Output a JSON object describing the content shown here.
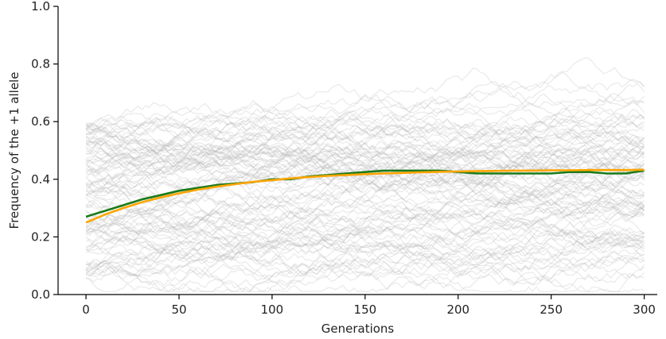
{
  "chart_data": {
    "type": "line",
    "title": "",
    "xlabel": "Generations",
    "ylabel": "Frequency of the +1 allele",
    "xlim": [
      -15,
      307
    ],
    "ylim": [
      0.0,
      1.0
    ],
    "xticks": [
      0,
      50,
      100,
      150,
      200,
      250,
      300
    ],
    "xtick_labels": [
      "0",
      "50",
      "100",
      "150",
      "200",
      "250",
      "300"
    ],
    "yticks": [
      0.0,
      0.2,
      0.4,
      0.6,
      0.8,
      1.0
    ],
    "ytick_labels": [
      "0.0",
      "0.2",
      "0.4",
      "0.6",
      "0.8",
      "1.0"
    ],
    "grid": false,
    "legend": "none",
    "replicates": {
      "count": 100,
      "generations": 300,
      "color": "#b0b0b0",
      "opacity": 0.25
    },
    "series": [
      {
        "color": "#1a7a1a",
        "x": [
          0,
          10,
          20,
          30,
          40,
          50,
          60,
          70,
          80,
          90,
          100,
          110,
          120,
          130,
          140,
          150,
          160,
          170,
          180,
          190,
          200,
          210,
          220,
          230,
          240,
          250,
          260,
          270,
          280,
          290,
          300
        ],
        "values": [
          0.27,
          0.29,
          0.31,
          0.33,
          0.345,
          0.36,
          0.37,
          0.38,
          0.385,
          0.39,
          0.4,
          0.4,
          0.41,
          0.415,
          0.42,
          0.425,
          0.43,
          0.43,
          0.43,
          0.43,
          0.425,
          0.42,
          0.42,
          0.42,
          0.42,
          0.42,
          0.425,
          0.425,
          0.42,
          0.42,
          0.43
        ]
      },
      {
        "color": "#ffa500",
        "x": [
          0,
          10,
          20,
          30,
          40,
          50,
          60,
          70,
          80,
          90,
          100,
          110,
          120,
          130,
          140,
          150,
          160,
          170,
          180,
          190,
          200,
          210,
          220,
          230,
          240,
          250,
          260,
          270,
          280,
          290,
          300
        ],
        "values": [
          0.25,
          0.277,
          0.3,
          0.32,
          0.337,
          0.351,
          0.364,
          0.374,
          0.383,
          0.391,
          0.397,
          0.403,
          0.408,
          0.412,
          0.415,
          0.418,
          0.42,
          0.422,
          0.424,
          0.426,
          0.427,
          0.428,
          0.429,
          0.43,
          0.43,
          0.431,
          0.431,
          0.432,
          0.432,
          0.432,
          0.433
        ]
      }
    ]
  }
}
